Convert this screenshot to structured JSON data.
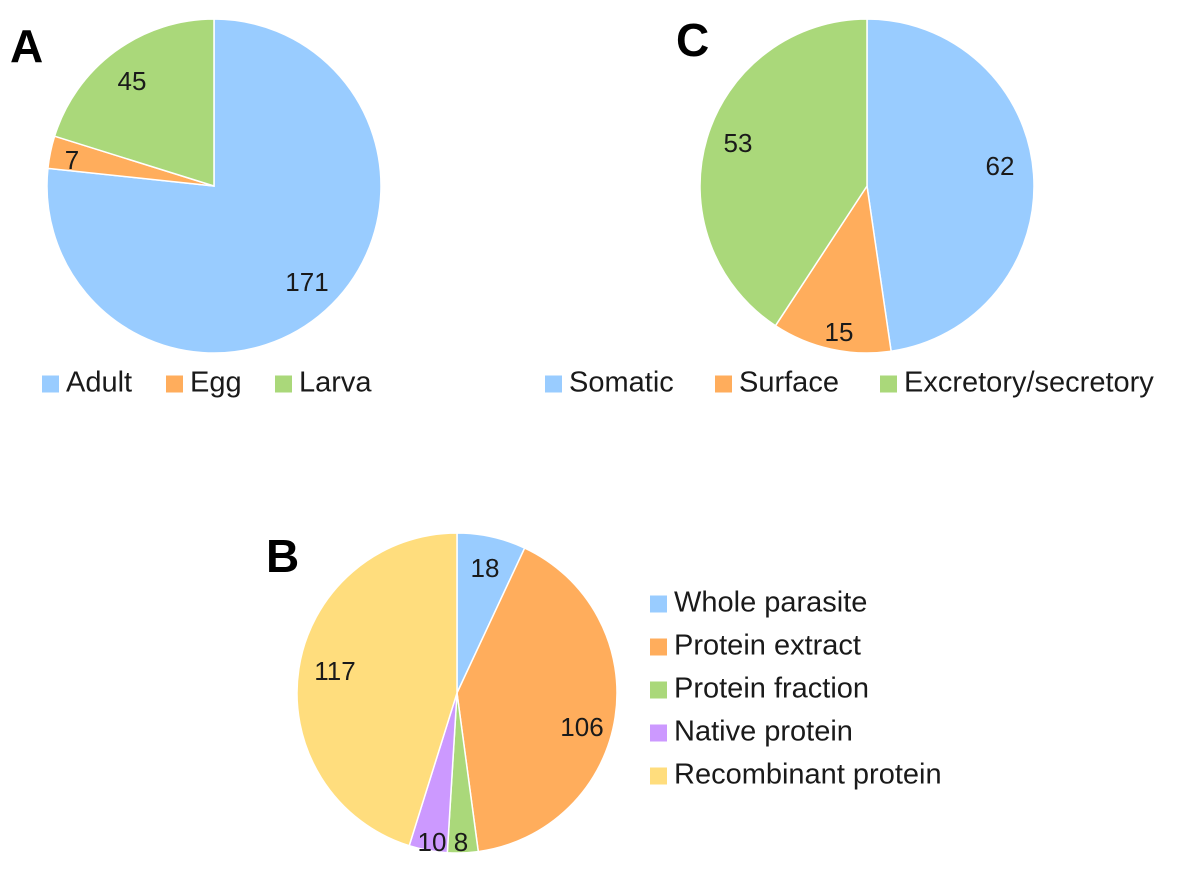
{
  "chart_data": [
    {
      "panel": "A",
      "type": "pie",
      "slices": [
        {
          "label": "Adult",
          "value": 171,
          "color": "#99CCFF"
        },
        {
          "label": "Egg",
          "value": 7,
          "color": "#FFAD5C"
        },
        {
          "label": "Larva",
          "value": 45,
          "color": "#AAD87A"
        }
      ],
      "legend_position": "bottom"
    },
    {
      "panel": "C",
      "type": "pie",
      "slices": [
        {
          "label": "Somatic",
          "value": 62,
          "color": "#99CCFF"
        },
        {
          "label": "Surface",
          "value": 15,
          "color": "#FFAD5C"
        },
        {
          "label": "Excretory/secretory",
          "value": 53,
          "color": "#AAD87A"
        }
      ],
      "legend_position": "bottom"
    },
    {
      "panel": "B",
      "type": "pie",
      "slices": [
        {
          "label": "Whole parasite",
          "value": 18,
          "color": "#99CCFF"
        },
        {
          "label": "Protein extract",
          "value": 106,
          "color": "#FFAD5C"
        },
        {
          "label": "Protein fraction",
          "value": 8,
          "color": "#AAD87A"
        },
        {
          "label": "Native protein",
          "value": 10,
          "color": "#CC99FF"
        },
        {
          "label": "Recombinant protein",
          "value": 117,
          "color": "#FFDD7D"
        }
      ],
      "legend_position": "right"
    }
  ]
}
